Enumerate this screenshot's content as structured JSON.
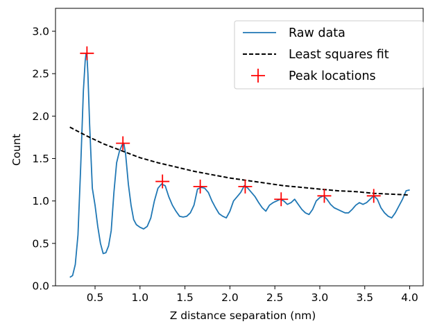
{
  "chart_data": {
    "type": "line",
    "title": "",
    "xlabel": "Z distance separation (nm)",
    "ylabel": "Count",
    "xlim": [
      0.06,
      4.15
    ],
    "ylim": [
      0.0,
      3.27
    ],
    "xticks": [
      0.5,
      1.0,
      1.5,
      2.0,
      2.5,
      3.0,
      3.5,
      4.0
    ],
    "xtick_labels": [
      "0.5",
      "1.0",
      "1.5",
      "2.0",
      "2.5",
      "3.0",
      "3.5",
      "4.0"
    ],
    "yticks": [
      0.0,
      0.5,
      1.0,
      1.5,
      2.0,
      2.5,
      3.0
    ],
    "ytick_labels": [
      "0.0",
      "0.5",
      "1.0",
      "1.5",
      "2.0",
      "2.5",
      "3.0"
    ],
    "grid": false,
    "legend_position": "top-right",
    "series": [
      {
        "name": "Raw data",
        "style": "solid",
        "color": "#1f77b4",
        "x": [
          0.22,
          0.25,
          0.28,
          0.31,
          0.34,
          0.37,
          0.39,
          0.4,
          0.41,
          0.42,
          0.44,
          0.47,
          0.5,
          0.53,
          0.56,
          0.59,
          0.62,
          0.65,
          0.68,
          0.71,
          0.74,
          0.77,
          0.8,
          0.82,
          0.84,
          0.87,
          0.9,
          0.93,
          0.96,
          1.0,
          1.04,
          1.08,
          1.12,
          1.16,
          1.2,
          1.24,
          1.28,
          1.32,
          1.36,
          1.4,
          1.44,
          1.48,
          1.52,
          1.56,
          1.6,
          1.64,
          1.68,
          1.72,
          1.76,
          1.8,
          1.84,
          1.88,
          1.92,
          1.96,
          2.0,
          2.04,
          2.08,
          2.12,
          2.16,
          2.2,
          2.24,
          2.28,
          2.32,
          2.36,
          2.4,
          2.44,
          2.48,
          2.52,
          2.56,
          2.6,
          2.64,
          2.68,
          2.72,
          2.76,
          2.8,
          2.84,
          2.88,
          2.92,
          2.96,
          3.0,
          3.04,
          3.08,
          3.12,
          3.16,
          3.2,
          3.24,
          3.28,
          3.32,
          3.36,
          3.4,
          3.44,
          3.48,
          3.52,
          3.56,
          3.6,
          3.64,
          3.68,
          3.72,
          3.76,
          3.8,
          3.84,
          3.88,
          3.92,
          3.96,
          4.0
        ],
        "values": [
          0.1,
          0.12,
          0.25,
          0.6,
          1.4,
          2.3,
          2.65,
          2.74,
          2.7,
          2.5,
          1.9,
          1.15,
          0.95,
          0.7,
          0.5,
          0.38,
          0.39,
          0.47,
          0.65,
          1.1,
          1.45,
          1.58,
          1.66,
          1.68,
          1.55,
          1.2,
          0.95,
          0.78,
          0.72,
          0.69,
          0.67,
          0.7,
          0.8,
          1.0,
          1.15,
          1.2,
          1.18,
          1.05,
          0.95,
          0.88,
          0.82,
          0.81,
          0.82,
          0.86,
          0.95,
          1.14,
          1.16,
          1.15,
          1.1,
          1.0,
          0.92,
          0.85,
          0.82,
          0.8,
          0.88,
          1.0,
          1.05,
          1.1,
          1.18,
          1.15,
          1.1,
          1.05,
          0.98,
          0.92,
          0.88,
          0.95,
          0.98,
          1.0,
          1.02,
          1.0,
          0.96,
          0.98,
          1.02,
          0.96,
          0.9,
          0.86,
          0.84,
          0.9,
          1.0,
          1.04,
          1.06,
          1.02,
          0.96,
          0.92,
          0.9,
          0.88,
          0.86,
          0.86,
          0.9,
          0.95,
          0.98,
          0.96,
          0.98,
          1.02,
          1.06,
          1.02,
          0.92,
          0.86,
          0.82,
          0.8,
          0.86,
          0.94,
          1.02,
          1.12,
          1.13
        ]
      },
      {
        "name": "Least squares fit",
        "style": "dashed",
        "color": "#000000",
        "x": [
          0.22,
          0.4,
          0.6,
          0.8,
          1.0,
          1.2,
          1.4,
          1.6,
          1.8,
          2.0,
          2.2,
          2.4,
          2.6,
          2.8,
          3.0,
          3.2,
          3.4,
          3.6,
          3.8,
          4.0
        ],
        "values": [
          1.87,
          1.77,
          1.67,
          1.59,
          1.51,
          1.45,
          1.4,
          1.35,
          1.31,
          1.27,
          1.24,
          1.21,
          1.18,
          1.16,
          1.14,
          1.12,
          1.11,
          1.09,
          1.08,
          1.07
        ]
      },
      {
        "name": "Peak locations",
        "style": "marker-plus",
        "color": "#ff0000",
        "x": [
          0.41,
          0.81,
          1.25,
          1.67,
          2.17,
          2.57,
          3.05,
          3.6
        ],
        "values": [
          2.74,
          1.68,
          1.23,
          1.17,
          1.17,
          1.02,
          1.06,
          1.06
        ]
      }
    ]
  }
}
